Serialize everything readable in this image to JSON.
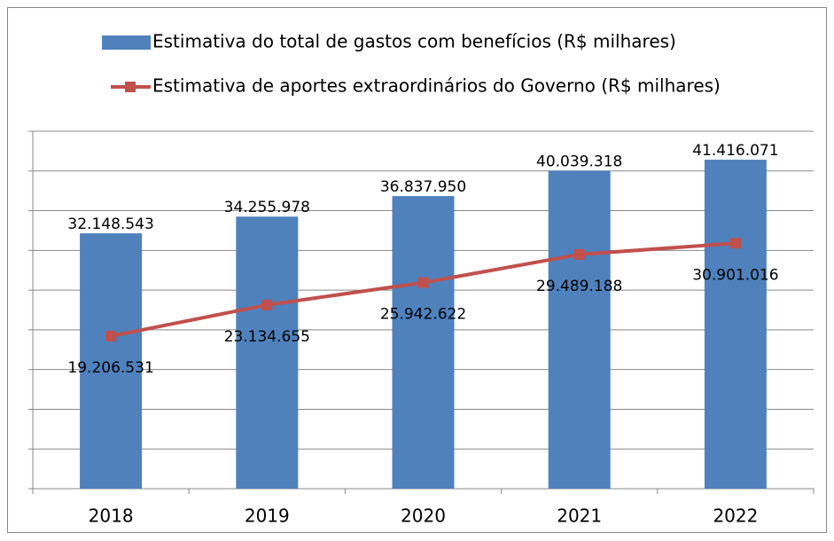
{
  "chart_data": {
    "type": "bar-line",
    "categories": [
      "2018",
      "2019",
      "2020",
      "2021",
      "2022"
    ],
    "series": [
      {
        "name": "Estimativa do total de gastos com benefícios (R$ milhares)",
        "type": "bar",
        "color": "#4f81bd",
        "values": [
          32148543,
          34255978,
          36837950,
          40039318,
          41416071
        ],
        "value_labels": [
          "32.148.543",
          "34.255.978",
          "36.837.950",
          "40.039.318",
          "41.416.071"
        ]
      },
      {
        "name": "Estimativa de aportes extraordinários do Governo (R$ milhares)",
        "type": "line",
        "color": "#c0504d",
        "values": [
          19206531,
          23134655,
          25942622,
          29489188,
          30901016
        ],
        "value_labels": [
          "19.206.531",
          "23.134.655",
          "25.942.622",
          "29.489.188",
          "30.901.016"
        ]
      }
    ],
    "ylim": [
      0,
      45000000
    ],
    "yticks": [
      0,
      5000000,
      10000000,
      15000000,
      20000000,
      25000000,
      30000000,
      35000000,
      40000000,
      45000000
    ],
    "grid": true
  }
}
